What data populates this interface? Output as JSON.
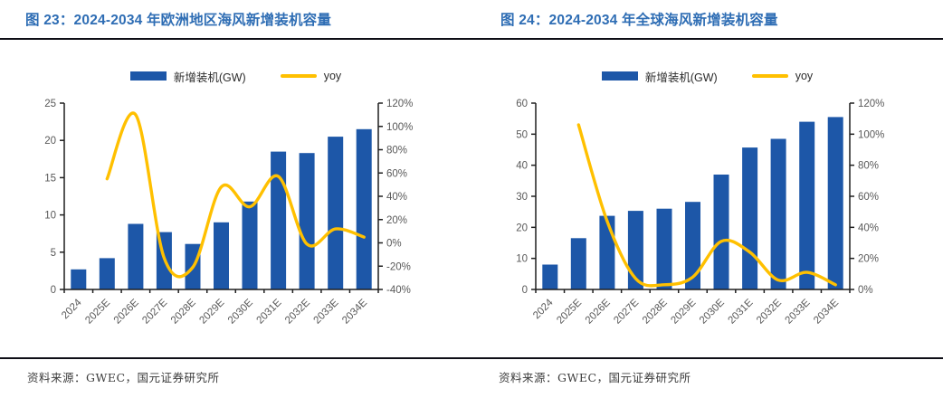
{
  "colors": {
    "bar": "#1D57A8",
    "line": "#FFC000",
    "title": "#2E6DB4",
    "axis": "#1f1f1f",
    "tick_label": "#595959",
    "divider": "#0e0e16"
  },
  "panels": [
    {
      "title": "图 23：2024-2034 年欧洲地区海风新增装机容量",
      "legend": {
        "bar": "新增装机(GW)",
        "line": "yoy"
      },
      "source": "资料来源：GWEC，国元证券研究所"
    },
    {
      "title": "图 24：2024-2034 年全球海风新增装机容量",
      "legend": {
        "bar": "新增装机(GW)",
        "line": "yoy"
      },
      "source": "资料来源：GWEC，国元证券研究所"
    }
  ],
  "chart_data": [
    {
      "type": "bar+line",
      "title": "2024-2034 年欧洲地区海风新增装机容量",
      "categories": [
        "2024",
        "2025E",
        "2026E",
        "2027E",
        "2028E",
        "2029E",
        "2030E",
        "2031E",
        "2032E",
        "2033E",
        "2034E"
      ],
      "series": [
        {
          "name": "新增装机(GW)",
          "type": "bar",
          "axis": "left",
          "values": [
            2.7,
            4.2,
            8.8,
            7.7,
            6.1,
            9.0,
            11.8,
            18.5,
            18.3,
            20.5,
            21.5
          ]
        },
        {
          "name": "yoy",
          "type": "line",
          "axis": "right",
          "unit": "%",
          "values": [
            null,
            55,
            110,
            -13,
            -21,
            48,
            31,
            57,
            -1,
            12,
            5
          ]
        }
      ],
      "left_axis": {
        "min": 0,
        "max": 25,
        "step": 5,
        "ticks": [
          "0",
          "5",
          "10",
          "15",
          "20",
          "25"
        ]
      },
      "right_axis": {
        "min": -40,
        "max": 120,
        "step": 20,
        "ticks": [
          "-40%",
          "-20%",
          "0%",
          "20%",
          "40%",
          "60%",
          "80%",
          "100%",
          "120%"
        ]
      },
      "grid": false,
      "legend_position": "top"
    },
    {
      "type": "bar+line",
      "title": "2024-2034 年全球海风新增装机容量",
      "categories": [
        "2024",
        "2025E",
        "2026E",
        "2027E",
        "2028E",
        "2029E",
        "2030E",
        "2031E",
        "2032E",
        "2033E",
        "2034E"
      ],
      "series": [
        {
          "name": "新增装机(GW)",
          "type": "bar",
          "axis": "left",
          "values": [
            8.0,
            16.5,
            23.7,
            25.3,
            26.0,
            28.2,
            37.0,
            45.7,
            48.5,
            54.0,
            55.5
          ]
        },
        {
          "name": "yoy",
          "type": "line",
          "axis": "right",
          "unit": "%",
          "values": [
            null,
            106,
            44,
            7,
            3,
            8,
            31,
            24,
            6,
            11,
            3
          ]
        }
      ],
      "left_axis": {
        "min": 0,
        "max": 60,
        "step": 10,
        "ticks": [
          "0",
          "10",
          "20",
          "30",
          "40",
          "50",
          "60"
        ]
      },
      "right_axis": {
        "min": 0,
        "max": 120,
        "step": 20,
        "ticks": [
          "0%",
          "20%",
          "40%",
          "60%",
          "80%",
          "100%",
          "120%"
        ]
      },
      "grid": false,
      "legend_position": "top"
    }
  ]
}
